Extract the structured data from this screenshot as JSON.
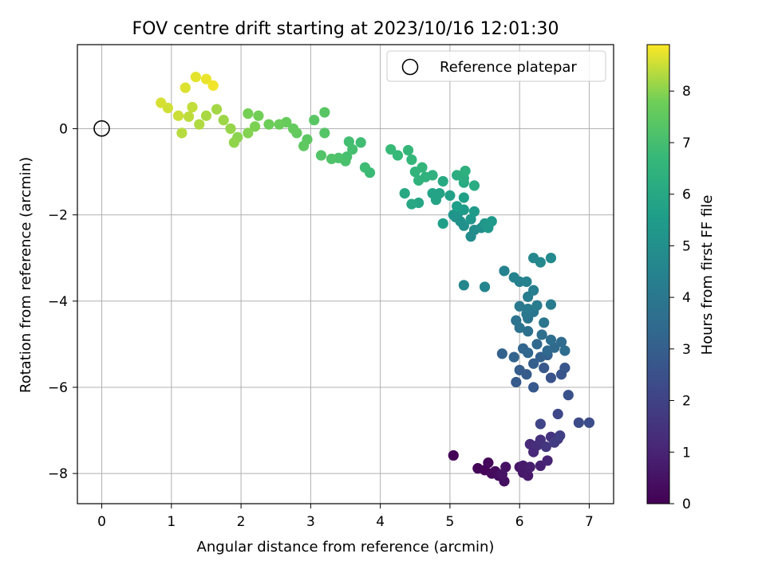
{
  "chart_data": {
    "type": "scatter",
    "title": "FOV centre drift starting at 2023/10/16 12:01:30",
    "xlabel": "Angular distance from reference (arcmin)",
    "ylabel": "Rotation from reference (arcmin)",
    "xlim": [
      -0.35,
      7.35
    ],
    "ylim": [
      -8.7,
      1.95
    ],
    "xticks": [
      0,
      1,
      2,
      3,
      4,
      5,
      6,
      7
    ],
    "yticks": [
      0,
      -2,
      -4,
      -6,
      -8
    ],
    "xtick_labels": [
      "0",
      "1",
      "2",
      "3",
      "4",
      "5",
      "6",
      "7"
    ],
    "ytick_labels": [
      "0",
      "−2",
      "−4",
      "−6",
      "−8"
    ],
    "grid": true,
    "legend": {
      "position": "top-right",
      "label": "Reference platepar"
    },
    "reference_point": {
      "x": 0,
      "y": 0
    },
    "colorbar": {
      "label": "Hours from first FF file",
      "range": [
        0,
        8.9
      ],
      "ticks": [
        0,
        1,
        2,
        3,
        4,
        5,
        6,
        7,
        8
      ],
      "tick_labels": [
        "0",
        "1",
        "2",
        "3",
        "4",
        "5",
        "6",
        "7",
        "8"
      ],
      "colormap": "viridis"
    },
    "series": [
      {
        "points": [
          [
            5.05,
            -7.58,
            0.05
          ],
          [
            5.4,
            -7.88,
            0.1
          ],
          [
            5.5,
            -7.92,
            0.15
          ],
          [
            5.55,
            -7.75,
            0.2
          ],
          [
            5.6,
            -8.0,
            0.25
          ],
          [
            5.65,
            -7.95,
            0.3
          ],
          [
            5.7,
            -8.05,
            0.35
          ],
          [
            5.78,
            -8.18,
            0.4
          ],
          [
            5.8,
            -7.85,
            0.45
          ],
          [
            5.75,
            -8.02,
            0.5
          ],
          [
            6.0,
            -7.85,
            0.6
          ],
          [
            6.05,
            -7.98,
            0.65
          ],
          [
            6.12,
            -8.05,
            0.7
          ],
          [
            6.05,
            -7.82,
            0.75
          ],
          [
            6.15,
            -7.85,
            0.8
          ],
          [
            6.3,
            -7.82,
            0.9
          ],
          [
            6.4,
            -7.7,
            1.0
          ],
          [
            6.2,
            -7.5,
            1.1
          ],
          [
            6.15,
            -7.32,
            1.2
          ],
          [
            6.25,
            -7.35,
            1.3
          ],
          [
            6.3,
            -7.22,
            1.4
          ],
          [
            6.45,
            -7.15,
            1.5
          ],
          [
            6.38,
            -7.38,
            1.6
          ],
          [
            6.55,
            -7.2,
            1.7
          ],
          [
            6.5,
            -7.28,
            1.8
          ],
          [
            6.58,
            -7.12,
            1.9
          ],
          [
            6.3,
            -6.85,
            2.1
          ],
          [
            6.55,
            -6.62,
            2.2
          ],
          [
            6.85,
            -6.82,
            2.3
          ],
          [
            7.0,
            -6.82,
            2.35
          ],
          [
            6.7,
            -6.18,
            2.5
          ],
          [
            6.45,
            -5.78,
            2.6
          ],
          [
            6.6,
            -5.7,
            2.65
          ],
          [
            6.65,
            -5.55,
            2.7
          ],
          [
            6.35,
            -5.55,
            2.75
          ],
          [
            6.2,
            -6.0,
            2.8
          ],
          [
            5.95,
            -5.88,
            2.85
          ],
          [
            6.1,
            -5.7,
            2.9
          ],
          [
            6.0,
            -5.6,
            2.95
          ],
          [
            6.2,
            -5.45,
            3.0
          ],
          [
            6.3,
            -5.3,
            3.05
          ],
          [
            6.4,
            -5.25,
            3.1
          ],
          [
            5.75,
            -5.22,
            3.15
          ],
          [
            5.92,
            -5.3,
            3.2
          ],
          [
            6.05,
            -5.1,
            3.25
          ],
          [
            6.12,
            -5.2,
            3.3
          ],
          [
            6.25,
            -5.0,
            3.35
          ],
          [
            6.4,
            -5.15,
            3.4
          ],
          [
            6.5,
            -5.08,
            3.45
          ],
          [
            6.6,
            -4.95,
            3.5
          ],
          [
            6.65,
            -5.15,
            3.55
          ],
          [
            6.45,
            -4.9,
            3.6
          ],
          [
            6.32,
            -4.78,
            3.65
          ],
          [
            6.12,
            -4.7,
            3.7
          ],
          [
            6.0,
            -4.62,
            3.75
          ],
          [
            5.95,
            -4.45,
            3.8
          ],
          [
            6.12,
            -4.4,
            3.85
          ],
          [
            6.2,
            -4.25,
            3.9
          ],
          [
            6.35,
            -4.5,
            3.95
          ],
          [
            6.1,
            -4.3,
            4.0
          ],
          [
            6.0,
            -4.12,
            4.05
          ],
          [
            6.12,
            -4.18,
            4.1
          ],
          [
            6.25,
            -4.1,
            4.15
          ],
          [
            6.45,
            -4.08,
            4.2
          ],
          [
            6.12,
            -3.9,
            4.25
          ],
          [
            6.2,
            -3.75,
            4.3
          ],
          [
            6.0,
            -3.55,
            4.35
          ],
          [
            5.92,
            -3.45,
            4.4
          ],
          [
            5.78,
            -3.3,
            4.45
          ],
          [
            6.1,
            -3.55,
            4.5
          ],
          [
            5.5,
            -3.67,
            4.55
          ],
          [
            5.2,
            -3.63,
            4.6
          ],
          [
            6.2,
            -3.0,
            4.65
          ],
          [
            6.3,
            -3.1,
            4.7
          ],
          [
            6.45,
            -3.0,
            4.75
          ],
          [
            5.3,
            -2.5,
            4.85
          ],
          [
            5.35,
            -2.35,
            4.9
          ],
          [
            5.45,
            -2.3,
            4.95
          ],
          [
            5.2,
            -2.25,
            5.0
          ],
          [
            5.15,
            -2.15,
            5.05
          ],
          [
            5.08,
            -2.05,
            5.1
          ],
          [
            5.12,
            -1.95,
            5.15
          ],
          [
            5.05,
            -2.0,
            5.2
          ],
          [
            5.3,
            -2.1,
            5.25
          ],
          [
            5.5,
            -2.2,
            5.3
          ],
          [
            5.55,
            -2.3,
            5.35
          ],
          [
            5.6,
            -2.15,
            5.4
          ],
          [
            5.35,
            -1.92,
            5.45
          ],
          [
            5.2,
            -1.88,
            5.5
          ],
          [
            5.1,
            -1.8,
            5.55
          ],
          [
            4.9,
            -2.2,
            5.6
          ],
          [
            5.2,
            -1.6,
            5.65
          ],
          [
            5.0,
            -1.55,
            5.7
          ],
          [
            4.85,
            -1.5,
            5.75
          ],
          [
            4.75,
            -1.5,
            5.8
          ],
          [
            4.8,
            -1.65,
            5.85
          ],
          [
            4.55,
            -1.72,
            5.9
          ],
          [
            4.45,
            -1.75,
            5.95
          ],
          [
            4.35,
            -1.5,
            6.0
          ],
          [
            4.9,
            -1.22,
            6.05
          ],
          [
            5.2,
            -1.25,
            6.1
          ],
          [
            5.35,
            -1.32,
            6.15
          ],
          [
            5.2,
            -1.15,
            6.2
          ],
          [
            5.1,
            -1.08,
            6.25
          ],
          [
            5.22,
            -0.98,
            6.3
          ],
          [
            4.75,
            -1.08,
            6.35
          ],
          [
            4.65,
            -1.12,
            6.4
          ],
          [
            4.55,
            -1.2,
            6.45
          ],
          [
            4.5,
            -1.0,
            6.5
          ],
          [
            4.6,
            -0.9,
            6.55
          ],
          [
            4.45,
            -0.72,
            6.6
          ],
          [
            4.4,
            -0.5,
            6.65
          ],
          [
            4.25,
            -0.62,
            6.7
          ],
          [
            4.15,
            -0.48,
            6.75
          ],
          [
            3.85,
            -1.02,
            6.8
          ],
          [
            3.78,
            -0.9,
            6.85
          ],
          [
            3.72,
            -0.32,
            6.9
          ],
          [
            3.55,
            -0.3,
            6.95
          ],
          [
            3.6,
            -0.48,
            7.0
          ],
          [
            3.52,
            -0.65,
            7.05
          ],
          [
            3.5,
            -0.75,
            7.1
          ],
          [
            3.4,
            -0.68,
            7.15
          ],
          [
            3.3,
            -0.7,
            7.2
          ],
          [
            3.15,
            -0.62,
            7.25
          ],
          [
            3.2,
            -0.1,
            7.3
          ],
          [
            3.2,
            0.38,
            7.35
          ],
          [
            3.05,
            0.2,
            7.4
          ],
          [
            2.95,
            -0.25,
            7.45
          ],
          [
            2.9,
            -0.4,
            7.5
          ],
          [
            2.8,
            -0.1,
            7.55
          ],
          [
            2.75,
            0.0,
            7.6
          ],
          [
            2.65,
            0.15,
            7.65
          ],
          [
            2.55,
            0.1,
            7.7
          ],
          [
            2.4,
            0.1,
            7.75
          ],
          [
            2.25,
            0.3,
            7.8
          ],
          [
            2.1,
            0.35,
            7.85
          ],
          [
            2.2,
            0.05,
            7.9
          ],
          [
            2.1,
            -0.1,
            7.95
          ],
          [
            1.95,
            -0.2,
            8.0
          ],
          [
            1.9,
            -0.32,
            8.05
          ],
          [
            1.85,
            0.0,
            8.1
          ],
          [
            1.75,
            0.2,
            8.15
          ],
          [
            1.65,
            0.45,
            8.2
          ],
          [
            1.5,
            0.3,
            8.25
          ],
          [
            1.4,
            0.1,
            8.3
          ],
          [
            1.15,
            -0.1,
            8.35
          ],
          [
            1.25,
            0.28,
            8.4
          ],
          [
            1.3,
            0.5,
            8.45
          ],
          [
            1.1,
            0.3,
            8.5
          ],
          [
            0.95,
            0.48,
            8.55
          ],
          [
            0.85,
            0.6,
            8.6
          ],
          [
            1.2,
            0.95,
            8.65
          ],
          [
            1.35,
            1.2,
            8.7
          ],
          [
            1.5,
            1.15,
            8.75
          ],
          [
            1.6,
            1.0,
            8.8
          ]
        ]
      }
    ]
  }
}
